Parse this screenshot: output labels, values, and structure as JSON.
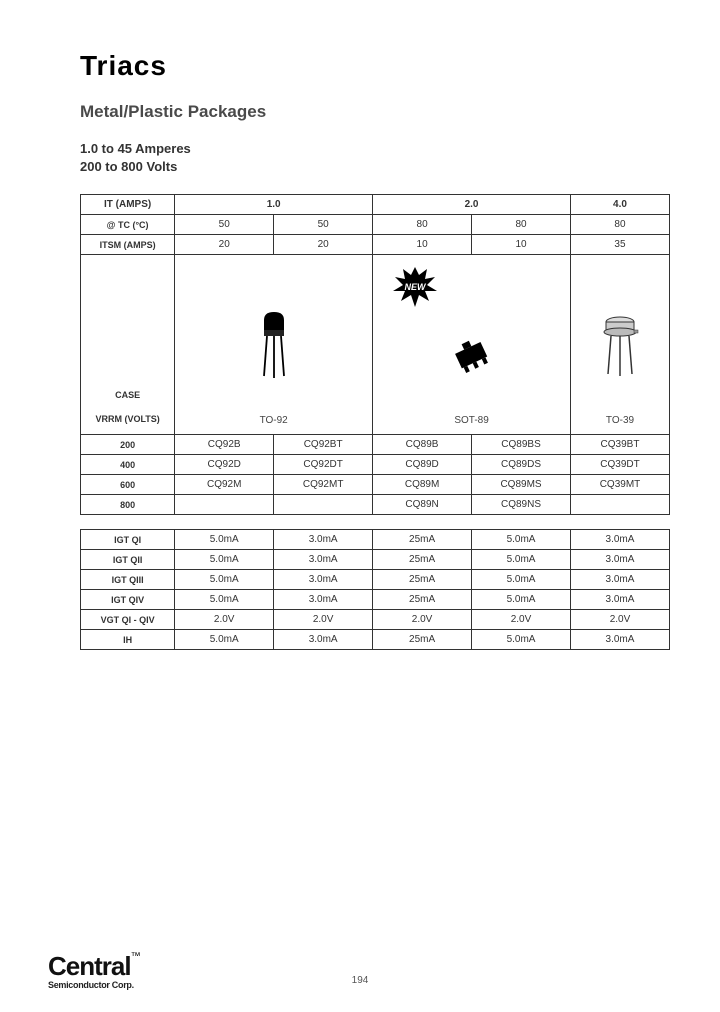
{
  "title": "Triacs",
  "subtitle": "Metal/Plastic Packages",
  "spec1": "1.0 to 45 Amperes",
  "spec2": "200 to 800 Volts",
  "colors": {
    "text": "#000000",
    "subtext": "#4a4a4a",
    "border": "#333333",
    "bg": "#ffffff"
  },
  "table1": {
    "headers": {
      "it": "IT (AMPS)",
      "tc": "@ TC (°C)",
      "itsm": "ITSM (AMPS)",
      "case": "CASE",
      "vrrm": "VRRM (VOLTS)"
    },
    "it_vals": [
      "1.0",
      "2.0",
      "4.0"
    ],
    "tc_vals": [
      "50",
      "50",
      "80",
      "80",
      "80"
    ],
    "itsm_vals": [
      "20",
      "20",
      "10",
      "10",
      "35"
    ],
    "pkg_caps": [
      "TO-92",
      "SOT-89",
      "TO-39"
    ],
    "vrrm_rows": [
      {
        "v": "200",
        "cells": [
          "CQ92B",
          "CQ92BT",
          "CQ89B",
          "CQ89BS",
          "CQ39BT"
        ]
      },
      {
        "v": "400",
        "cells": [
          "CQ92D",
          "CQ92DT",
          "CQ89D",
          "CQ89DS",
          "CQ39DT"
        ]
      },
      {
        "v": "600",
        "cells": [
          "CQ92M",
          "CQ92MT",
          "CQ89M",
          "CQ89MS",
          "CQ39MT"
        ]
      },
      {
        "v": "800",
        "cells": [
          "",
          "",
          "CQ89N",
          "CQ89NS",
          ""
        ]
      }
    ],
    "new_label": "NEW"
  },
  "table2": {
    "rows": [
      {
        "label": "IGT QI",
        "cells": [
          "5.0mA",
          "3.0mA",
          "25mA",
          "5.0mA",
          "3.0mA"
        ]
      },
      {
        "label": "IGT QII",
        "cells": [
          "5.0mA",
          "3.0mA",
          "25mA",
          "5.0mA",
          "3.0mA"
        ]
      },
      {
        "label": "IGT QIII",
        "cells": [
          "5.0mA",
          "3.0mA",
          "25mA",
          "5.0mA",
          "3.0mA"
        ]
      },
      {
        "label": "IGT QIV",
        "cells": [
          "5.0mA",
          "3.0mA",
          "25mA",
          "5.0mA",
          "3.0mA"
        ]
      },
      {
        "label": "VGT QI - QIV",
        "cells": [
          "2.0V",
          "2.0V",
          "2.0V",
          "2.0V",
          "2.0V"
        ]
      },
      {
        "label": "IH",
        "cells": [
          "5.0mA",
          "3.0mA",
          "25mA",
          "5.0mA",
          "3.0mA"
        ]
      }
    ]
  },
  "footer": {
    "brand": "Central",
    "brand_sub": "Semiconductor Corp.",
    "tm": "™",
    "page": "194"
  },
  "col_widths_pct": [
    16,
    16.8,
    16.8,
    16.8,
    16.8,
    16.8
  ]
}
